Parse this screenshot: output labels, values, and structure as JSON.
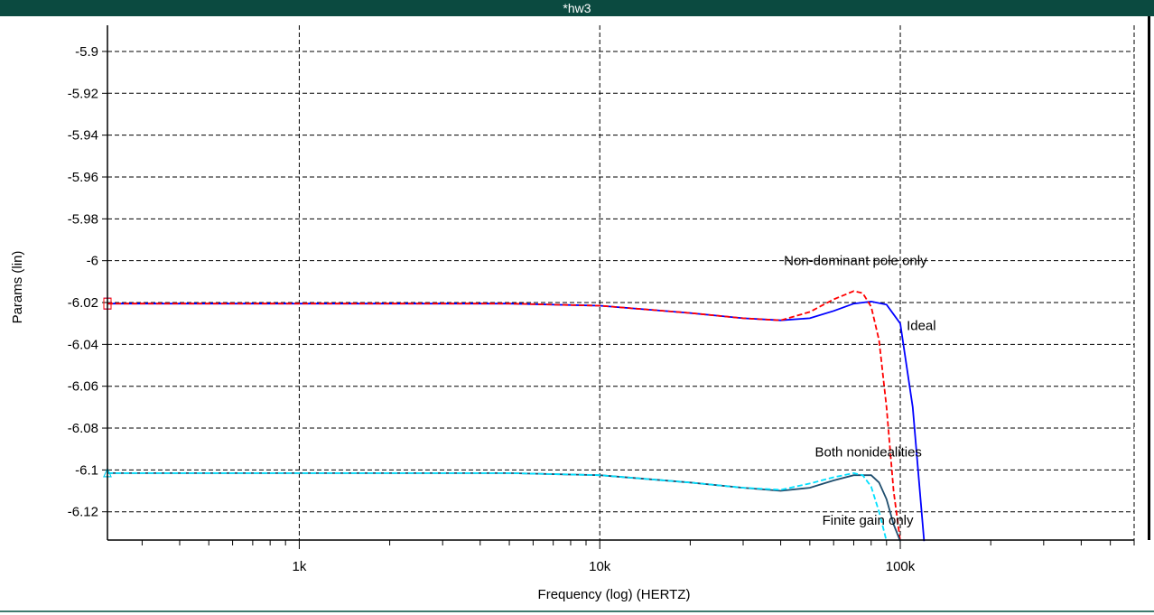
{
  "window": {
    "title": "*hw3"
  },
  "chart_data": {
    "type": "line",
    "title": "",
    "xlabel": "Frequency (log) (HERTZ)",
    "ylabel": "Params (lin)",
    "x_scale": "log",
    "xlim": [
      230,
      600000
    ],
    "ylim": [
      -6.1335,
      -5.8875
    ],
    "grid": true,
    "x_ticks": [
      {
        "value": 1000,
        "label": "1k"
      },
      {
        "value": 10000,
        "label": "10k"
      },
      {
        "value": 100000,
        "label": "100k"
      }
    ],
    "y_ticks": [
      {
        "value": -5.9,
        "label": "-5.9"
      },
      {
        "value": -5.92,
        "label": "-5.92"
      },
      {
        "value": -5.94,
        "label": "-5.94"
      },
      {
        "value": -5.96,
        "label": "-5.96"
      },
      {
        "value": -5.98,
        "label": "-5.98"
      },
      {
        "value": -6.0,
        "label": "-6"
      },
      {
        "value": -6.02,
        "label": "-6.02"
      },
      {
        "value": -6.04,
        "label": "-6.04"
      },
      {
        "value": -6.06,
        "label": "-6.06"
      },
      {
        "value": -6.08,
        "label": "-6.08"
      },
      {
        "value": -6.1,
        "label": "-6.1"
      },
      {
        "value": -6.12,
        "label": "-6.12"
      }
    ],
    "series": [
      {
        "name": "Ideal",
        "color": "#0000ff",
        "dash": "solid",
        "points": [
          [
            230,
            -6.0205
          ],
          [
            1000,
            -6.0205
          ],
          [
            5000,
            -6.0205
          ],
          [
            10000,
            -6.0215
          ],
          [
            20000,
            -6.025
          ],
          [
            30000,
            -6.0275
          ],
          [
            40000,
            -6.0285
          ],
          [
            50000,
            -6.0275
          ],
          [
            60000,
            -6.024
          ],
          [
            70000,
            -6.0205
          ],
          [
            80000,
            -6.0195
          ],
          [
            90000,
            -6.021
          ],
          [
            100000,
            -6.03
          ],
          [
            110000,
            -6.07
          ],
          [
            120000,
            -6.134
          ]
        ]
      },
      {
        "name": "Non-dominant pole only",
        "color": "#ff0000",
        "dash": "dashed",
        "points": [
          [
            230,
            -6.0205
          ],
          [
            1000,
            -6.0205
          ],
          [
            5000,
            -6.0205
          ],
          [
            10000,
            -6.0215
          ],
          [
            20000,
            -6.025
          ],
          [
            30000,
            -6.0275
          ],
          [
            40000,
            -6.0285
          ],
          [
            50000,
            -6.0245
          ],
          [
            60000,
            -6.0185
          ],
          [
            70000,
            -6.0145
          ],
          [
            75000,
            -6.0155
          ],
          [
            80000,
            -6.022
          ],
          [
            85000,
            -6.038
          ],
          [
            90000,
            -6.07
          ],
          [
            95000,
            -6.11
          ],
          [
            100000,
            -6.134
          ]
        ]
      },
      {
        "name": "Both nonidealities",
        "color": "#1f4e6e",
        "dash": "solid",
        "points": [
          [
            230,
            -6.1015
          ],
          [
            1000,
            -6.1015
          ],
          [
            5000,
            -6.1015
          ],
          [
            10000,
            -6.1025
          ],
          [
            20000,
            -6.106
          ],
          [
            30000,
            -6.1085
          ],
          [
            40000,
            -6.11
          ],
          [
            50000,
            -6.1085
          ],
          [
            60000,
            -6.105
          ],
          [
            70000,
            -6.1025
          ],
          [
            80000,
            -6.1025
          ],
          [
            85000,
            -6.106
          ],
          [
            90000,
            -6.114
          ],
          [
            95000,
            -6.126
          ],
          [
            100000,
            -6.134
          ]
        ]
      },
      {
        "name": "Finite gain only",
        "color": "#00e0ff",
        "dash": "dashed",
        "points": [
          [
            230,
            -6.1015
          ],
          [
            1000,
            -6.1015
          ],
          [
            5000,
            -6.1015
          ],
          [
            10000,
            -6.1025
          ],
          [
            20000,
            -6.106
          ],
          [
            30000,
            -6.1085
          ],
          [
            40000,
            -6.1095
          ],
          [
            50000,
            -6.1065
          ],
          [
            60000,
            -6.1035
          ],
          [
            70000,
            -6.1015
          ],
          [
            75000,
            -6.1025
          ],
          [
            80000,
            -6.108
          ],
          [
            85000,
            -6.12
          ],
          [
            90000,
            -6.134
          ]
        ]
      }
    ],
    "annotations": [
      {
        "text": "Non-dominant pole only",
        "x": 41000,
        "y": -6.0
      },
      {
        "text": "Ideal",
        "x": 105000,
        "y": -6.031
      },
      {
        "text": "Both nonidealities",
        "x": 52000,
        "y": -6.0915
      },
      {
        "text": "Finite gain only",
        "x": 55000,
        "y": -6.124
      }
    ],
    "legend": "annotations"
  }
}
